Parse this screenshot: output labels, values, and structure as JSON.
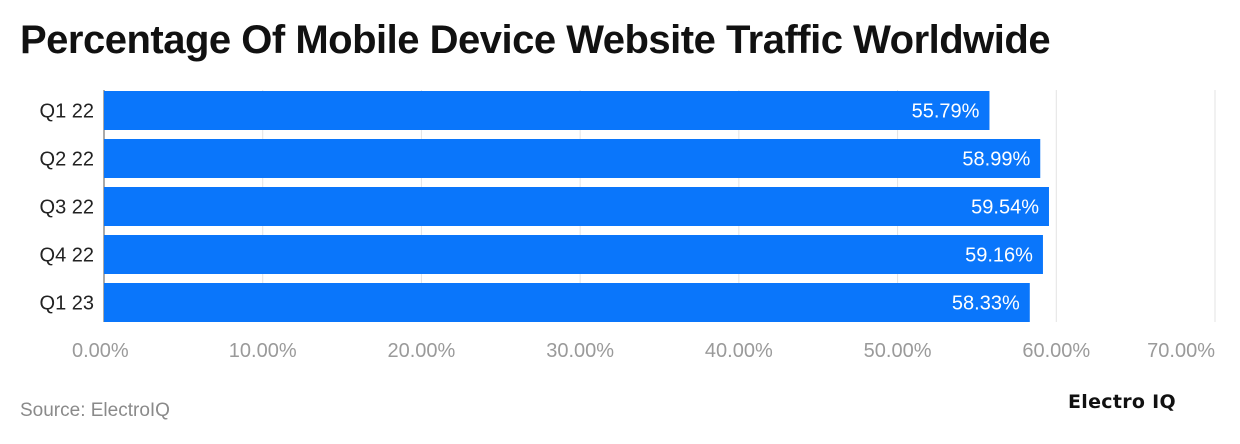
{
  "title": "Percentage Of Mobile Device Website Traffic Worldwide",
  "source": "Source: ElectroIQ",
  "brand": "Electro IQ",
  "colors": {
    "bar": "#0a76fb",
    "grid": "#e3e3e3",
    "tick_label": "#9a9a9a",
    "category_label": "#222222",
    "value_label": "#ffffff"
  },
  "chart_data": {
    "type": "bar",
    "orientation": "horizontal",
    "categories": [
      "Q1 22",
      "Q2 22",
      "Q3 22",
      "Q4 22",
      "Q1 23"
    ],
    "values": [
      55.79,
      58.99,
      59.54,
      59.16,
      58.33
    ],
    "value_labels": [
      "55.79%",
      "58.99%",
      "59.54%",
      "59.16%",
      "58.33%"
    ],
    "xlim": [
      0,
      70
    ],
    "x_ticks": [
      0,
      10,
      20,
      30,
      40,
      50,
      60,
      70
    ],
    "x_tick_labels": [
      "0.00%",
      "10.00%",
      "20.00%",
      "30.00%",
      "40.00%",
      "50.00%",
      "60.00%",
      "70.00%"
    ],
    "title": "Percentage Of Mobile Device Website Traffic Worldwide",
    "xlabel": "",
    "ylabel": "",
    "grid": true
  }
}
